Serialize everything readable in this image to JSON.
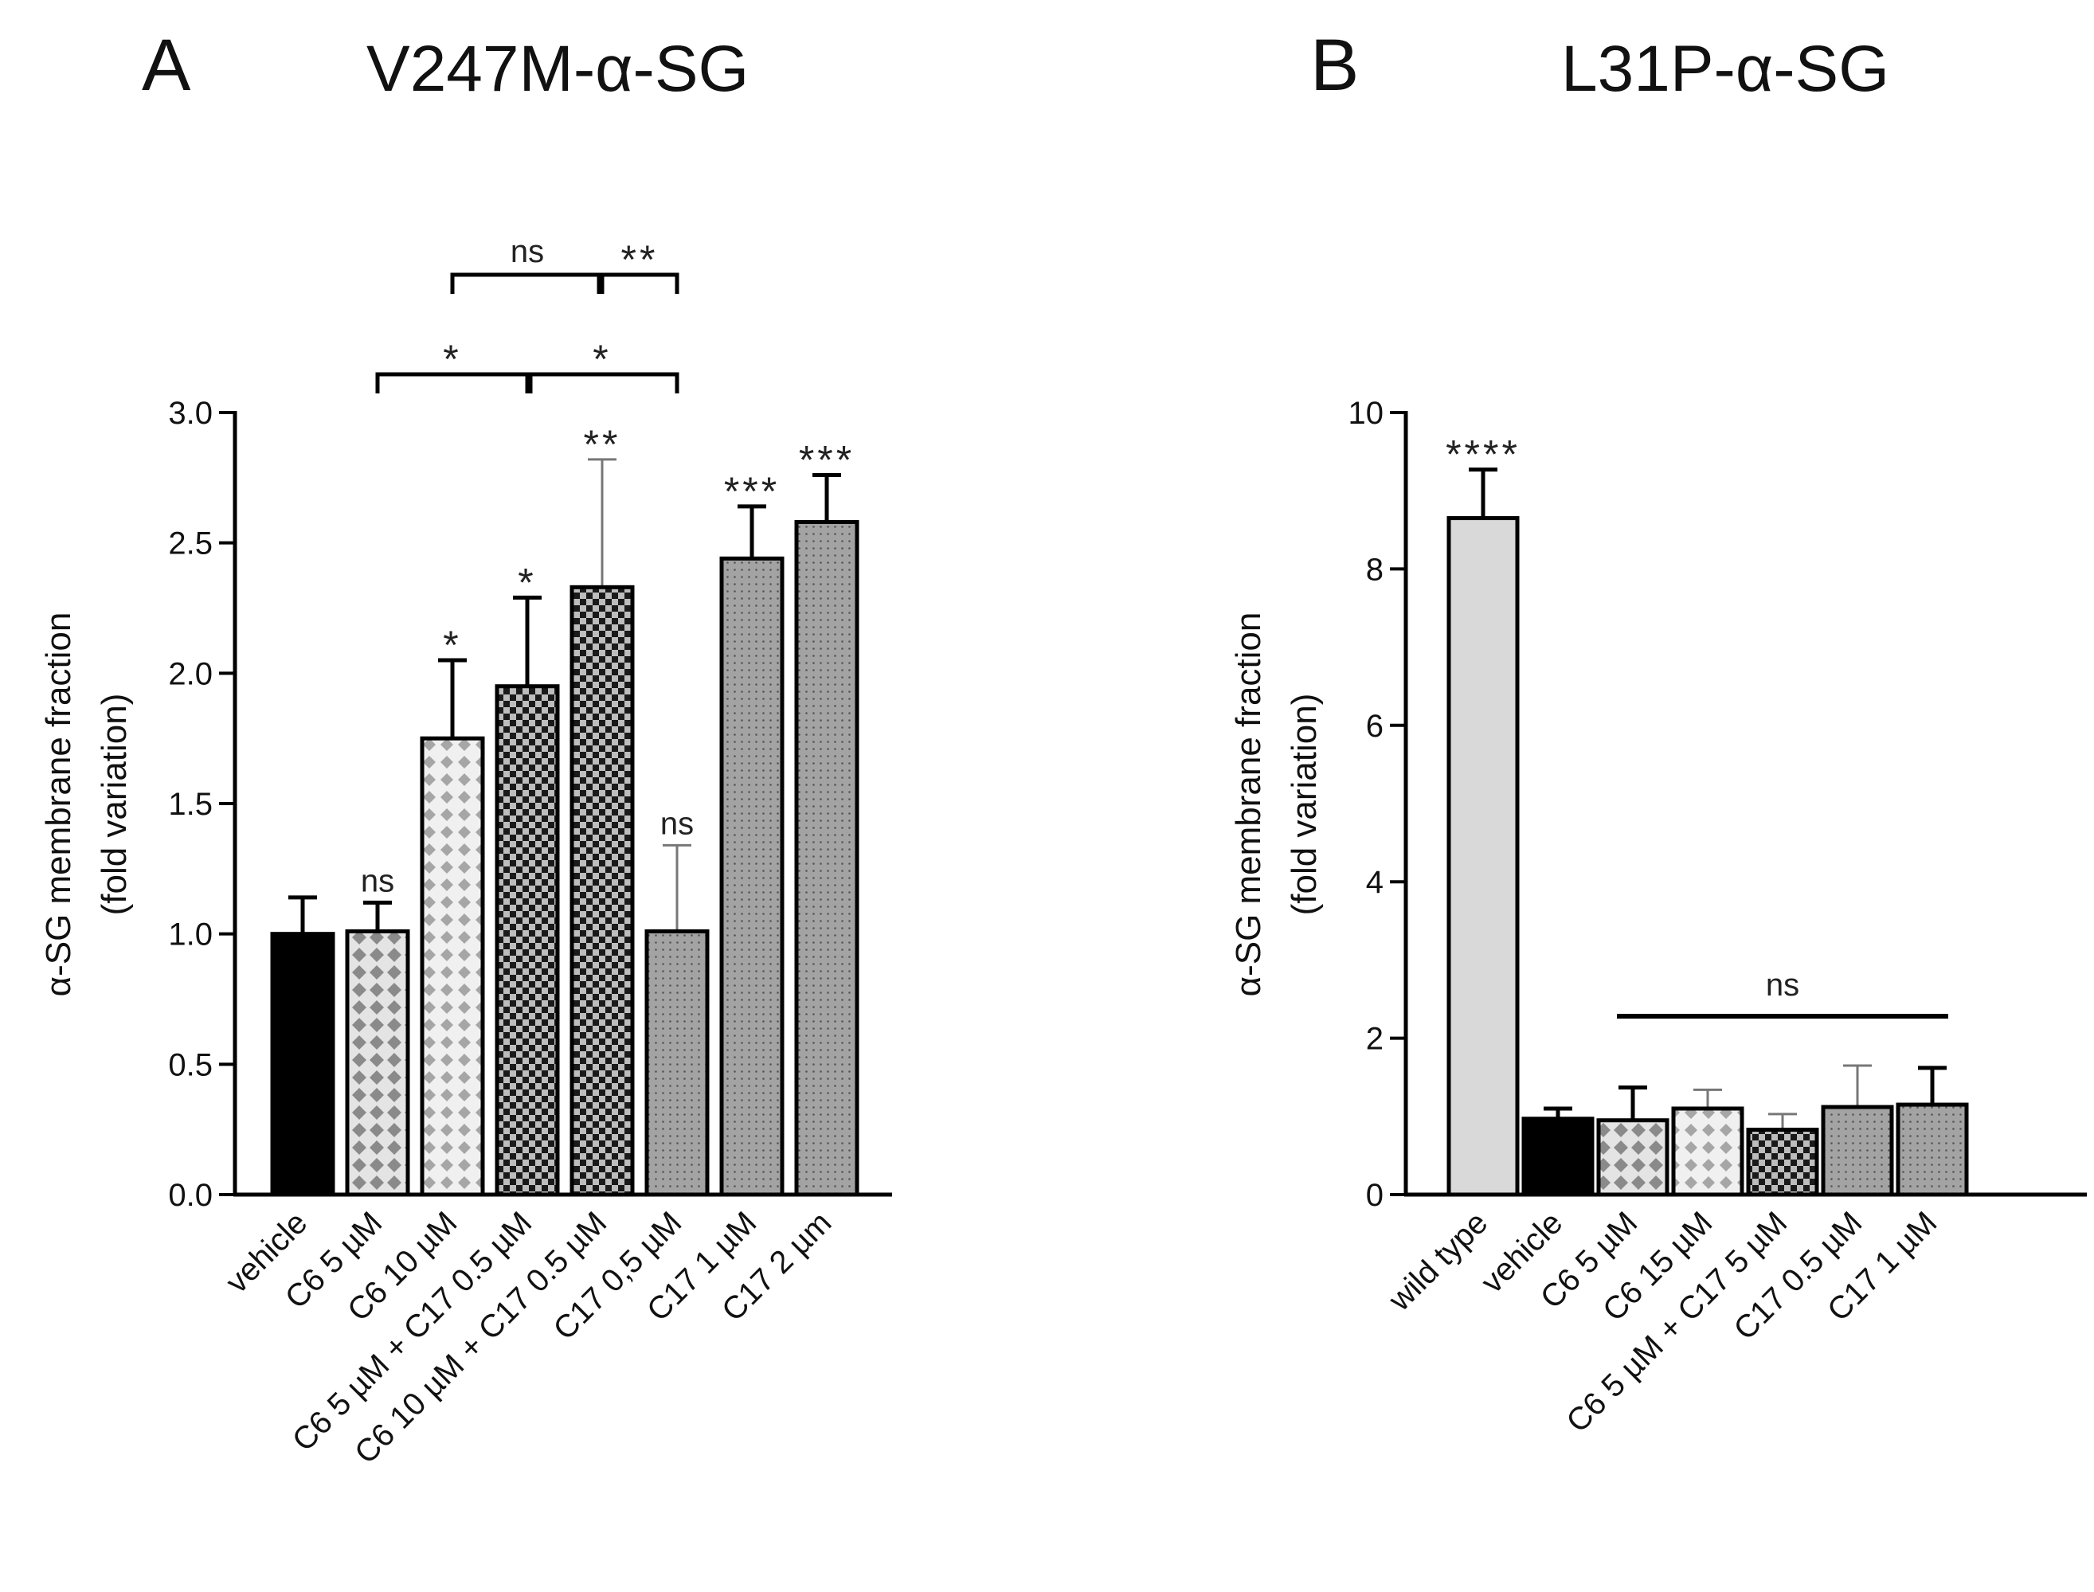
{
  "chart_data": [
    {
      "panel_letter": "A",
      "title": "V247M-α-SG",
      "type": "bar",
      "ylabel_line1": "α-SG membrane fraction",
      "ylabel_line2": "(fold variation)",
      "ylim": [
        0,
        3.0
      ],
      "yticks": [
        "0.0",
        "0.5",
        "1.0",
        "1.5",
        "2.0",
        "2.5",
        "3.0"
      ],
      "categories": [
        "vehicle",
        "C6 5 µM",
        "C6 10 µM",
        "C6 5 µM + C17 0.5 µM",
        "C6 10 µM + C17 0.5 µM",
        "C17 0,5 µM",
        "C17 1 µM",
        "C17 2 µm"
      ],
      "values": [
        1.0,
        1.01,
        1.75,
        1.95,
        2.33,
        1.01,
        2.44,
        2.58
      ],
      "errors": [
        0.14,
        0.11,
        0.3,
        0.34,
        0.49,
        0.33,
        0.2,
        0.18
      ],
      "patterns": [
        "solid-black",
        "diamond-light",
        "diamond-lighter",
        "checker-dark",
        "checker-dark",
        "dots-gray",
        "dots-gray",
        "dots-gray"
      ],
      "significance": [
        "",
        "ns",
        "*",
        "*",
        "**",
        "ns",
        "***",
        "***"
      ],
      "brackets": [
        {
          "from": 1,
          "to": 3,
          "label": "*",
          "level": 0
        },
        {
          "from": 3,
          "to": 5,
          "label": "*",
          "level": 0
        },
        {
          "from": 2,
          "to": 4,
          "label": "ns",
          "level": 1
        },
        {
          "from": 4,
          "to": 5,
          "label": "**",
          "level": 1
        }
      ]
    },
    {
      "panel_letter": "B",
      "title": "L31P-α-SG",
      "type": "bar",
      "ylabel_line1": "α-SG membrane fraction",
      "ylabel_line2": "(fold variation)",
      "ylim": [
        0,
        10
      ],
      "yticks": [
        "0",
        "2",
        "4",
        "6",
        "8",
        "10"
      ],
      "categories": [
        "wild type",
        "vehicle",
        "C6 5 µM",
        "C6 15 µM",
        "C6 5 µM + C17 5 µM",
        "C17 0.5 µM",
        "C17 1 µM"
      ],
      "values": [
        8.65,
        0.97,
        0.95,
        1.1,
        0.83,
        1.12,
        1.15
      ],
      "errors": [
        0.62,
        0.13,
        0.42,
        0.24,
        0.2,
        0.53,
        0.47
      ],
      "patterns": [
        "light-gray",
        "solid-black",
        "diamond-light",
        "diamond-lighter",
        "checker-dark",
        "dots-gray",
        "dots-gray"
      ],
      "significance": [
        "****",
        "",
        "",
        "",
        "",
        "",
        ""
      ],
      "group_line": {
        "from": 2,
        "to": 6,
        "label": "ns"
      }
    }
  ]
}
